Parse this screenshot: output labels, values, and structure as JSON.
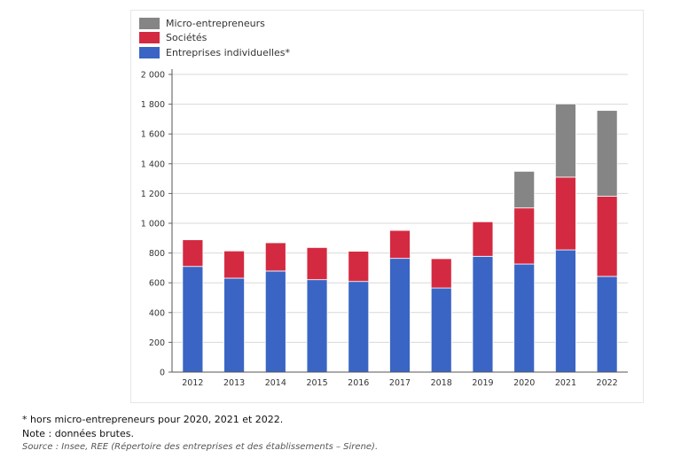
{
  "chart_data": {
    "type": "bar",
    "stacked": true,
    "title": "",
    "xlabel": "",
    "ylabel": "",
    "categories": [
      "2012",
      "2013",
      "2014",
      "2015",
      "2016",
      "2017",
      "2018",
      "2019",
      "2020",
      "2021",
      "2022"
    ],
    "series": [
      {
        "name": "Entreprises individuelles*",
        "color": "#3a65c4",
        "values": [
          710,
          631,
          679,
          621,
          609,
          764,
          565,
          778,
          726,
          821,
          643
        ]
      },
      {
        "name": "Sociétés",
        "color": "#d42a41",
        "values": [
          179,
          183,
          190,
          216,
          203,
          188,
          197,
          232,
          377,
          489,
          538
        ]
      },
      {
        "name": "Micro-entrepreneurs",
        "color": "#858585",
        "values": [
          0,
          0,
          0,
          0,
          0,
          0,
          0,
          0,
          246,
          492,
          577
        ]
      }
    ],
    "ylim": [
      0,
      2000
    ],
    "yticks": [
      0,
      200,
      400,
      600,
      800,
      1000,
      1200,
      1400,
      1600,
      1800,
      2000
    ],
    "ytick_labels": [
      "0",
      "200",
      "400",
      "600",
      "800",
      "1 000",
      "1 200",
      "1 400",
      "1 600",
      "1 800",
      "2 000"
    ],
    "grid": true,
    "legend_position": "top-left",
    "legend_order": [
      "Micro-entrepreneurs",
      "Sociétés",
      "Entreprises individuelles*"
    ]
  },
  "legend": [
    {
      "label": "Micro-entrepreneurs",
      "color": "#858585"
    },
    {
      "label": "Sociétés",
      "color": "#d42a41"
    },
    {
      "label": "Entreprises individuelles*",
      "color": "#3a65c4"
    }
  ],
  "notes": {
    "footnote": "* hors micro-entrepreneurs pour 2020, 2021 et 2022.",
    "note": "Note : données brutes.",
    "source": "Source : Insee, REE (Répertoire des entreprises et des établissements – Sirene)."
  }
}
